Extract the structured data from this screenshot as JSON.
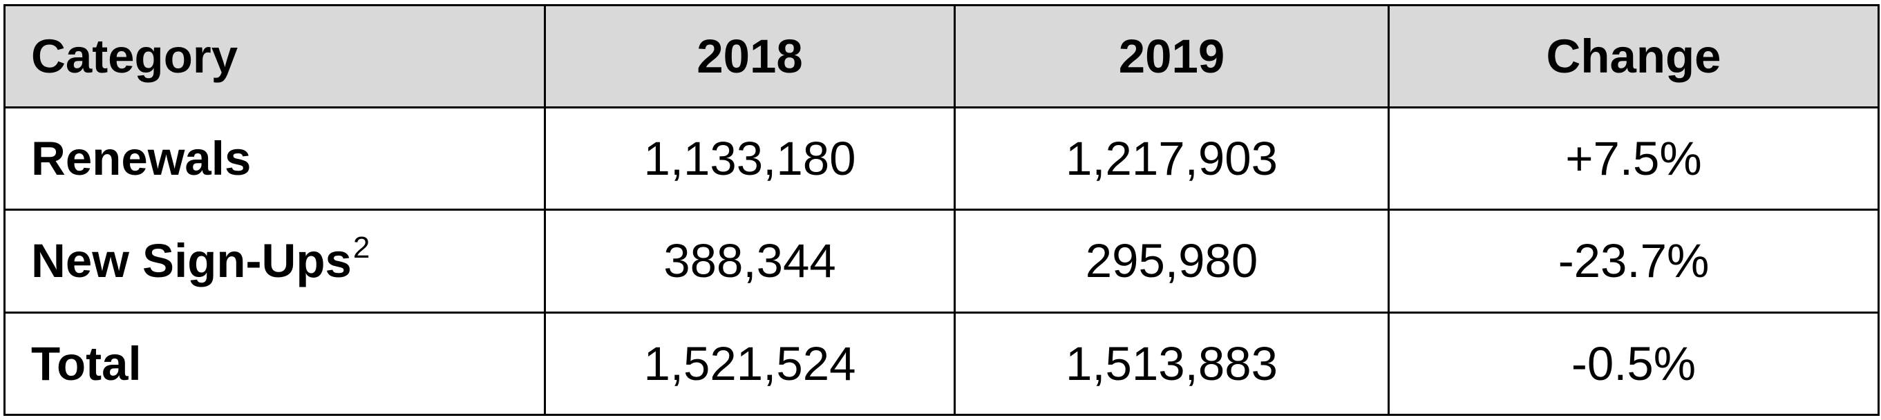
{
  "table": {
    "headers": [
      "Category",
      "2018",
      "2019",
      "Change"
    ],
    "rows": [
      {
        "category": "Renewals",
        "footnote": "",
        "y2018": "1,133,180",
        "y2019": "1,217,903",
        "change": "+7.5%"
      },
      {
        "category": "New Sign-Ups",
        "footnote": "2",
        "y2018": "388,344",
        "y2019": "295,980",
        "change": "-23.7%"
      },
      {
        "category": "Total",
        "footnote": "",
        "y2018": "1,521,524",
        "y2019": "1,513,883",
        "change": "-0.5%"
      }
    ]
  },
  "colors": {
    "header_background": "#d9d9d9",
    "border": "#000000",
    "text": "#000000"
  }
}
